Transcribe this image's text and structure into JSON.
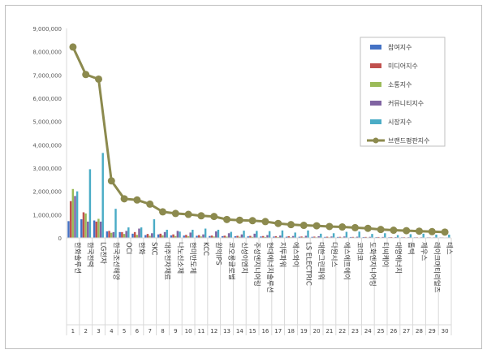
{
  "chart_data": {
    "type": "bar",
    "y_ticks": [
      "0",
      "1,000,000",
      "2,000,000",
      "3,000,000",
      "4,000,000",
      "5,000,000",
      "6,000,000",
      "7,000,000",
      "8,000,000",
      "9,000,000"
    ],
    "ylim": [
      0,
      9000000
    ],
    "grid": false,
    "legend_position": "top-right",
    "categories": [
      "한화솔루션",
      "한국전력",
      "LG전자",
      "한국조선해양",
      "OCI",
      "한화",
      "SKC",
      "대주전자재료",
      "나노신소재",
      "한미반도체",
      "KCC",
      "원익IPS",
      "코오롱글로벌",
      "신성이엔지",
      "주성엔지니어링",
      "현대에너지솔루션",
      "지투파워",
      "에스와이",
      "LS ELECTRIC",
      "대한그린파워",
      "다원시스",
      "에스에프에이",
      "코미코",
      "도화엔지니어링",
      "티씨케이",
      "대명에너지",
      "톱텍",
      "제우스",
      "레이크머티리얼즈",
      "테스"
    ],
    "ranks": [
      "1",
      "2",
      "3",
      "4",
      "5",
      "6",
      "7",
      "8",
      "9",
      "10",
      "11",
      "12",
      "13",
      "14",
      "15",
      "16",
      "17",
      "18",
      "19",
      "20",
      "21",
      "22",
      "23",
      "24",
      "25",
      "26",
      "27",
      "28",
      "29",
      "30"
    ],
    "series": [
      {
        "name": "참여지수",
        "color": "#4472c4",
        "values": [
          720000,
          800000,
          750000,
          280000,
          250000,
          180000,
          120000,
          150000,
          110000,
          100000,
          90000,
          80000,
          75000,
          70000,
          65000,
          60000,
          55000,
          50000,
          48000,
          45000,
          42000,
          40000,
          38000,
          35000,
          33000,
          30000,
          28000,
          26000,
          25000,
          23000
        ]
      },
      {
        "name": "미디어지수",
        "color": "#c0504d",
        "values": [
          1580000,
          1100000,
          700000,
          300000,
          250000,
          250000,
          170000,
          180000,
          150000,
          130000,
          120000,
          100000,
          95000,
          90000,
          85000,
          80000,
          75000,
          70000,
          60000,
          55000,
          50000,
          45000,
          42000,
          40000,
          38000,
          35000,
          30000,
          28000,
          25000,
          22000
        ]
      },
      {
        "name": "소통지수",
        "color": "#9bbb59",
        "values": [
          2100000,
          1050000,
          820000,
          220000,
          170000,
          130000,
          90000,
          110000,
          80000,
          70000,
          60000,
          60000,
          55000,
          50000,
          45000,
          40000,
          35000,
          30000,
          28000,
          26000,
          25000,
          24000,
          22000,
          20000,
          18000,
          17000,
          16000,
          15000,
          14000,
          13000
        ]
      },
      {
        "name": "커뮤니티지수",
        "color": "#8064a2",
        "values": [
          1800000,
          700000,
          700000,
          250000,
          300000,
          400000,
          200000,
          250000,
          300000,
          230000,
          150000,
          280000,
          200000,
          150000,
          180000,
          120000,
          100000,
          80000,
          90000,
          70000,
          60000,
          60000,
          50000,
          45000,
          40000,
          35000,
          30000,
          28000,
          25000,
          20000
        ]
      },
      {
        "name": "시장지수",
        "color": "#4bacc6",
        "values": [
          2000000,
          2950000,
          3650000,
          1250000,
          450000,
          450000,
          800000,
          350000,
          270000,
          350000,
          400000,
          350000,
          260000,
          310000,
          300000,
          290000,
          320000,
          230000,
          320000,
          180000,
          200000,
          260000,
          270000,
          170000,
          200000,
          120000,
          160000,
          180000,
          140000,
          140000
        ]
      },
      {
        "name": "브랜드평판지수",
        "color": "#8c8a4e",
        "type": "line",
        "values": [
          8200000,
          7020000,
          6820000,
          2450000,
          1680000,
          1630000,
          1450000,
          1120000,
          1050000,
          1010000,
          950000,
          920000,
          790000,
          760000,
          740000,
          700000,
          620000,
          570000,
          540000,
          520000,
          490000,
          470000,
          440000,
          410000,
          360000,
          330000,
          310000,
          290000,
          270000,
          250000
        ]
      }
    ]
  }
}
